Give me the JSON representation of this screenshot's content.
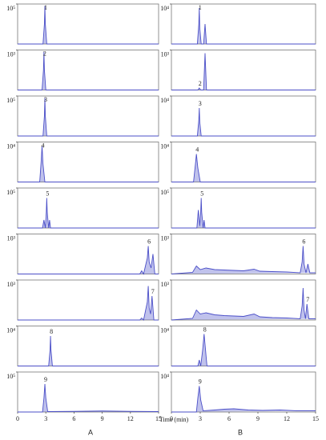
{
  "figure": {
    "xlabel": "Time (min)",
    "column_labels": [
      "A",
      "B"
    ]
  },
  "chart_data": [
    {
      "type": "line",
      "color": "#4b4fc8",
      "xlim": [
        0,
        15
      ],
      "ylim": [
        0,
        100000
      ],
      "yticks": [
        {
          "value": 100000,
          "label": "10⁵"
        }
      ],
      "annotation": {
        "text": "1",
        "x": 2.9
      },
      "x": [
        0,
        2.7,
        2.85,
        2.9,
        2.95,
        3.1,
        15
      ],
      "values": [
        0,
        0,
        50000,
        95000,
        50000,
        0,
        0
      ]
    },
    {
      "type": "line",
      "color": "#4b4fc8",
      "xlim": [
        0,
        15
      ],
      "ylim": [
        0,
        1000
      ],
      "yticks": [
        {
          "value": 1000,
          "label": "10³"
        }
      ],
      "annotation": {
        "text": "2",
        "x": 2.8
      },
      "x": [
        0,
        2.6,
        2.75,
        2.8,
        2.85,
        3.0,
        15
      ],
      "values": [
        0,
        0,
        500,
        950,
        500,
        0,
        0
      ]
    },
    {
      "type": "line",
      "color": "#4b4fc8",
      "xlim": [
        0,
        15
      ],
      "ylim": [
        0,
        100000
      ],
      "yticks": [
        {
          "value": 100000,
          "label": "10⁵"
        }
      ],
      "annotation": {
        "text": "3",
        "x": 2.9
      },
      "x": [
        0,
        2.7,
        2.85,
        2.9,
        2.95,
        3.1,
        15
      ],
      "values": [
        0,
        0,
        50000,
        95000,
        50000,
        0,
        0
      ]
    },
    {
      "type": "line",
      "color": "#4b4fc8",
      "xlim": [
        0,
        15
      ],
      "ylim": [
        0,
        10000
      ],
      "yticks": [
        {
          "value": 10000,
          "label": "10⁴"
        }
      ],
      "annotation": {
        "text": "4",
        "x": 2.6
      },
      "x": [
        0,
        2.35,
        2.5,
        2.6,
        2.7,
        2.9,
        15
      ],
      "values": [
        0,
        0,
        5000,
        9000,
        4500,
        0,
        0
      ]
    },
    {
      "type": "line",
      "color": "#4b4fc8",
      "xlim": [
        0,
        15
      ],
      "ylim": [
        0,
        100000
      ],
      "yticks": [
        {
          "value": 100000,
          "label": "10⁵"
        }
      ],
      "annotation": {
        "text": "5",
        "x": 3.1
      },
      "x": [
        0,
        2.65,
        2.8,
        2.95,
        3.05,
        3.1,
        3.15,
        3.3,
        3.4,
        3.5,
        15
      ],
      "values": [
        0,
        0,
        20000,
        0,
        40000,
        75000,
        40000,
        0,
        20000,
        0,
        0
      ]
    },
    {
      "type": "line",
      "color": "#4b4fc8",
      "xlim": [
        0,
        15
      ],
      "ylim": [
        0,
        1000
      ],
      "yticks": [
        {
          "value": 1000,
          "label": "10³"
        }
      ],
      "annotation": {
        "text": "6",
        "x": 13.9
      },
      "x": [
        0,
        13.0,
        13.2,
        13.4,
        13.8,
        13.9,
        14.0,
        14.2,
        14.4,
        14.6,
        15
      ],
      "values": [
        0,
        0,
        80,
        0,
        400,
        700,
        300,
        150,
        500,
        0,
        0
      ]
    },
    {
      "type": "line",
      "color": "#4b4fc8",
      "xlim": [
        0,
        15
      ],
      "ylim": [
        0,
        1000
      ],
      "yticks": [
        {
          "value": 1000,
          "label": "10³"
        }
      ],
      "annotation": {
        "text": "7",
        "x": 14.3
      },
      "x": [
        0,
        13.0,
        13.2,
        13.4,
        13.8,
        13.9,
        14.0,
        14.15,
        14.3,
        14.5,
        15
      ],
      "values": [
        0,
        0,
        50,
        0,
        450,
        850,
        300,
        150,
        600,
        0,
        0
      ]
    },
    {
      "type": "line",
      "color": "#4b4fc8",
      "xlim": [
        0,
        15
      ],
      "ylim": [
        0,
        10000
      ],
      "yticks": [
        {
          "value": 10000,
          "label": "10⁴"
        }
      ],
      "annotation": {
        "text": "8",
        "x": 3.5
      },
      "x": [
        0,
        3.3,
        3.45,
        3.5,
        3.55,
        3.7,
        15
      ],
      "values": [
        0,
        0,
        4000,
        7500,
        4000,
        0,
        0
      ]
    },
    {
      "type": "line",
      "color": "#4b4fc8",
      "xlim": [
        0,
        15
      ],
      "ylim": [
        0,
        100000
      ],
      "xticks": [
        0,
        3,
        6,
        9,
        12,
        15
      ],
      "yticks": [
        {
          "value": 100000,
          "label": "10⁵"
        }
      ],
      "annotation": {
        "text": "9",
        "x": 2.9
      },
      "x": [
        0,
        2.65,
        2.8,
        2.9,
        3.0,
        3.2,
        6,
        9,
        12,
        15
      ],
      "values": [
        0,
        0,
        35000,
        70000,
        35000,
        1000,
        1500,
        2500,
        1500,
        1000
      ]
    },
    {
      "type": "line",
      "color": "#4b4fc8",
      "xlim": [
        0,
        15
      ],
      "ylim": [
        0,
        10000
      ],
      "yticks": [
        {
          "value": 10000,
          "label": "10⁴"
        }
      ],
      "annotation": {
        "text": "1",
        "x": 2.9
      },
      "x": [
        0,
        2.7,
        2.85,
        2.9,
        2.95,
        3.1,
        3.35,
        3.5,
        3.65,
        15
      ],
      "values": [
        0,
        0,
        5000,
        9000,
        4000,
        0,
        0,
        5000,
        0,
        0
      ]
    },
    {
      "type": "line",
      "color": "#4b4fc8",
      "xlim": [
        0,
        15
      ],
      "ylim": [
        0,
        1000
      ],
      "yticks": [
        {
          "value": 1000,
          "label": "10³"
        }
      ],
      "annotation": {
        "text": "2",
        "x": 2.9
      },
      "x": [
        0,
        2.75,
        2.9,
        3.05,
        3.35,
        3.5,
        3.65,
        15
      ],
      "values": [
        0,
        0,
        50,
        0,
        0,
        920,
        0,
        0
      ]
    },
    {
      "type": "line",
      "color": "#4b4fc8",
      "xlim": [
        0,
        15
      ],
      "ylim": [
        0,
        10000
      ],
      "yticks": [
        {
          "value": 10000,
          "label": "10⁴"
        }
      ],
      "annotation": {
        "text": "3",
        "x": 2.9
      },
      "x": [
        0,
        2.7,
        2.85,
        2.9,
        2.95,
        3.1,
        15
      ],
      "values": [
        0,
        0,
        4000,
        7000,
        3500,
        0,
        0
      ]
    },
    {
      "type": "line",
      "color": "#4b4fc8",
      "xlim": [
        0,
        15
      ],
      "ylim": [
        0,
        10000
      ],
      "yticks": [
        {
          "value": 10000,
          "label": "10⁴"
        }
      ],
      "annotation": {
        "text": "4",
        "x": 2.6
      },
      "x": [
        0,
        2.3,
        2.5,
        2.6,
        2.75,
        3.0,
        15
      ],
      "values": [
        0,
        0,
        4500,
        7000,
        3500,
        0,
        0
      ]
    },
    {
      "type": "line",
      "color": "#4b4fc8",
      "xlim": [
        0,
        15
      ],
      "ylim": [
        0,
        100000
      ],
      "yticks": [
        {
          "value": 100000,
          "label": "10⁵"
        }
      ],
      "annotation": {
        "text": "5",
        "x": 3.1
      },
      "x": [
        0,
        2.65,
        2.8,
        2.95,
        3.05,
        3.1,
        3.15,
        3.3,
        3.4,
        3.5,
        15
      ],
      "values": [
        0,
        0,
        45000,
        5000,
        40000,
        75000,
        40000,
        0,
        20000,
        0,
        0
      ]
    },
    {
      "type": "line",
      "color": "#4b4fc8",
      "xlim": [
        0,
        15
      ],
      "ylim": [
        0,
        1000
      ],
      "yticks": [
        {
          "value": 1000,
          "label": "10³"
        }
      ],
      "annotation": {
        "text": "6",
        "x": 13.7
      },
      "x": [
        0,
        2.2,
        2.6,
        3.0,
        3.6,
        4.5,
        5.5,
        6.5,
        7.5,
        8.6,
        9.2,
        10.5,
        12.0,
        13.4,
        13.6,
        13.7,
        13.8,
        14.0,
        14.2,
        14.4,
        15
      ],
      "values": [
        0,
        40,
        200,
        110,
        150,
        110,
        100,
        90,
        80,
        120,
        70,
        60,
        50,
        30,
        300,
        700,
        250,
        30,
        250,
        30,
        30
      ]
    },
    {
      "type": "line",
      "color": "#4b4fc8",
      "xlim": [
        0,
        15
      ],
      "ylim": [
        0,
        1000
      ],
      "yticks": [
        {
          "value": 1000,
          "label": "10³"
        }
      ],
      "annotation": {
        "text": "7",
        "x": 14.1
      },
      "x": [
        0,
        2.2,
        2.6,
        3.0,
        3.6,
        4.5,
        5.5,
        6.5,
        7.5,
        8.6,
        9.2,
        10.5,
        12.0,
        13.4,
        13.6,
        13.7,
        13.8,
        13.95,
        14.1,
        14.3,
        15
      ],
      "values": [
        0,
        40,
        250,
        150,
        180,
        130,
        110,
        100,
        90,
        150,
        80,
        60,
        50,
        30,
        350,
        800,
        250,
        30,
        400,
        30,
        30
      ]
    },
    {
      "type": "line",
      "color": "#4b4fc8",
      "xlim": [
        0,
        15
      ],
      "ylim": [
        0,
        10000
      ],
      "yticks": [
        {
          "value": 10000,
          "label": "10⁴"
        }
      ],
      "annotation": {
        "text": "8",
        "x": 3.4
      },
      "x": [
        0,
        2.75,
        2.9,
        3.05,
        3.25,
        3.4,
        3.55,
        3.7,
        15
      ],
      "values": [
        0,
        0,
        1500,
        0,
        4000,
        8000,
        4000,
        0,
        0
      ]
    },
    {
      "type": "line",
      "color": "#4b4fc8",
      "xlim": [
        0,
        15
      ],
      "ylim": [
        0,
        10000
      ],
      "xticks": [
        0,
        3,
        6,
        9,
        12,
        15
      ],
      "yticks": [
        {
          "value": 10000,
          "label": "10⁴"
        }
      ],
      "annotation": {
        "text": "9",
        "x": 2.9
      },
      "x": [
        0,
        2.6,
        2.75,
        2.9,
        3.05,
        3.3,
        4.5,
        5.5,
        6.5,
        8,
        9.5,
        11.3,
        13,
        15
      ],
      "values": [
        0,
        0,
        3500,
        6500,
        3000,
        300,
        500,
        700,
        800,
        500,
        400,
        500,
        300,
        300
      ]
    }
  ]
}
